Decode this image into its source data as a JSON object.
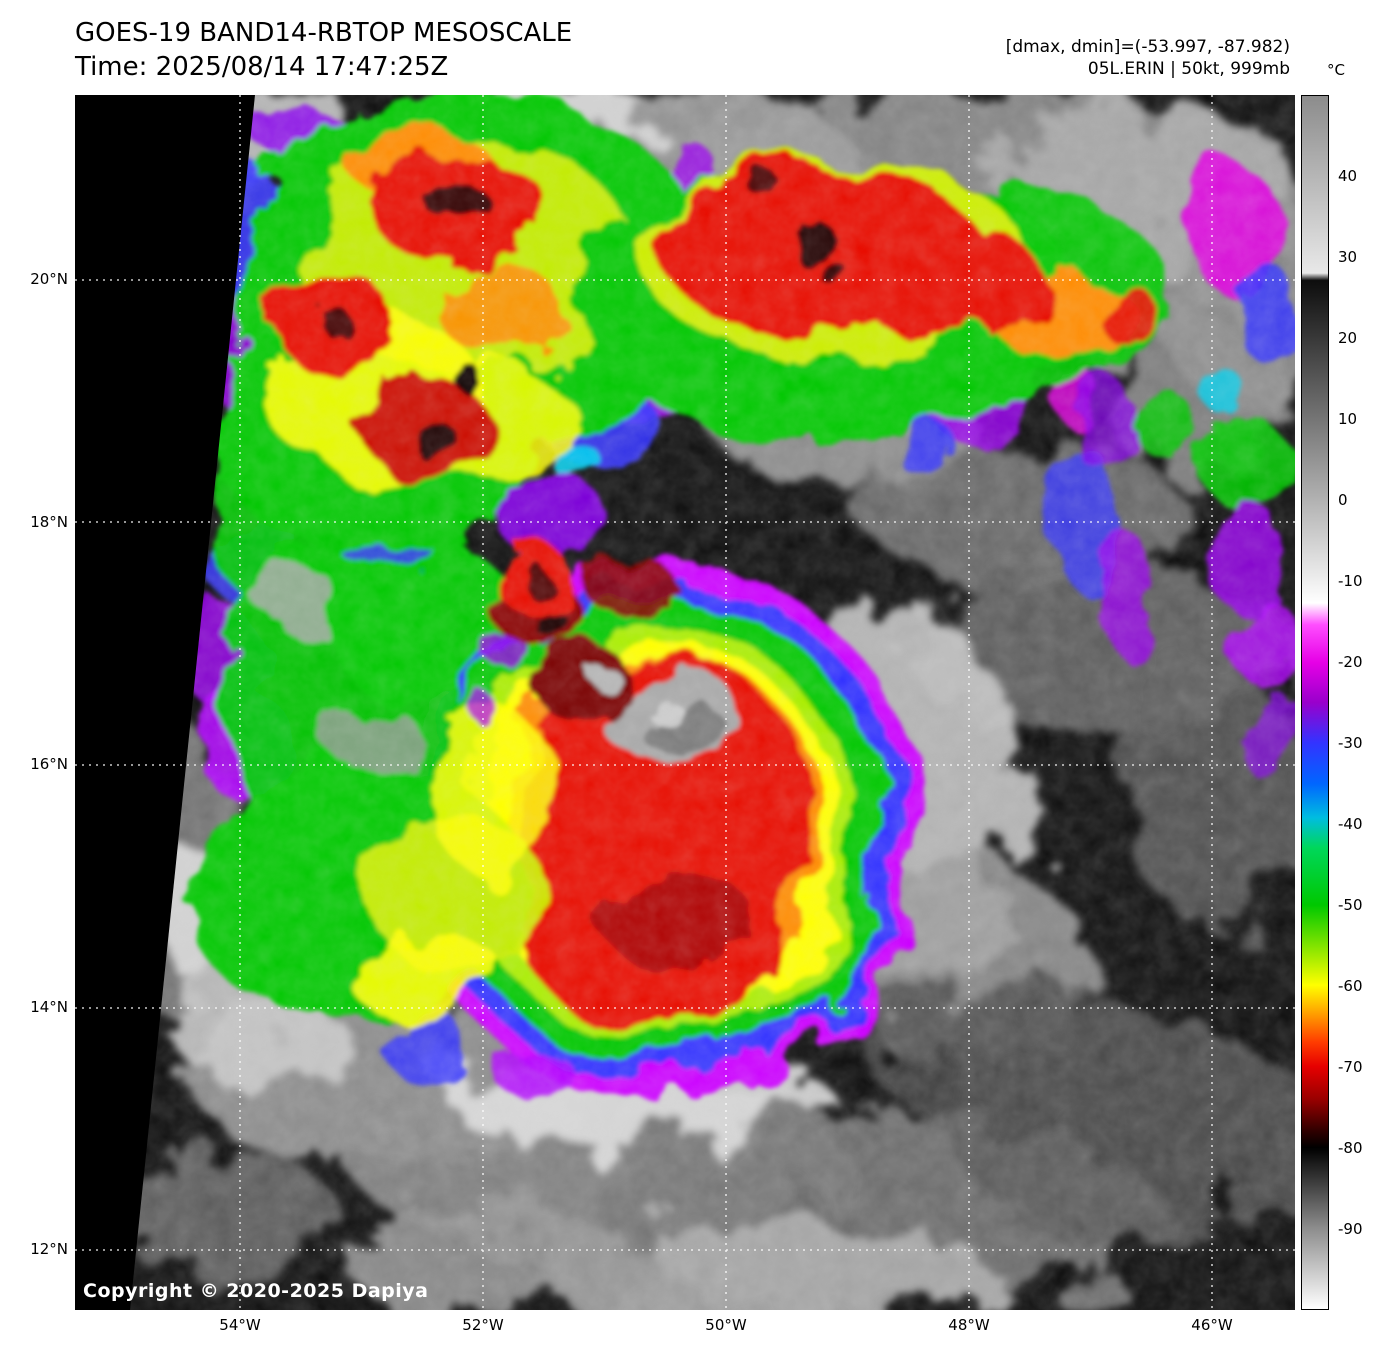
{
  "header": {
    "title": "GOES-19 BAND14-RBTOP MESOSCALE",
    "time": "Time: 2025/08/14 17:47:25Z",
    "range_label": "[dmax, dmin]=(-53.997, -87.982)",
    "storm_label": "05L.ERIN | 50kt, 999mb"
  },
  "colorbar": {
    "unit": "°C",
    "ticks": [
      "40",
      "30",
      "20",
      "10",
      "0",
      "-10",
      "-20",
      "-30",
      "-40",
      "-50",
      "-60",
      "-70",
      "-80",
      "-90"
    ],
    "scale_max_c": 50,
    "scale_min_c": -100
  },
  "axes": {
    "lat_labels": [
      "20°N",
      "18°N",
      "16°N",
      "14°N",
      "12°N"
    ],
    "lon_labels": [
      "54°W",
      "52°W",
      "50°W",
      "48°W",
      "46°W"
    ]
  },
  "image": {
    "copyright": "Copyright © 2020-2025 Dapiya",
    "satellite": "GOES-19",
    "band": "BAND14",
    "product": "RBTOP",
    "sector": "MESOSCALE",
    "storm_id": "05L",
    "storm_name": "ERIN",
    "intensity": "50kt",
    "pressure": "999mb"
  }
}
